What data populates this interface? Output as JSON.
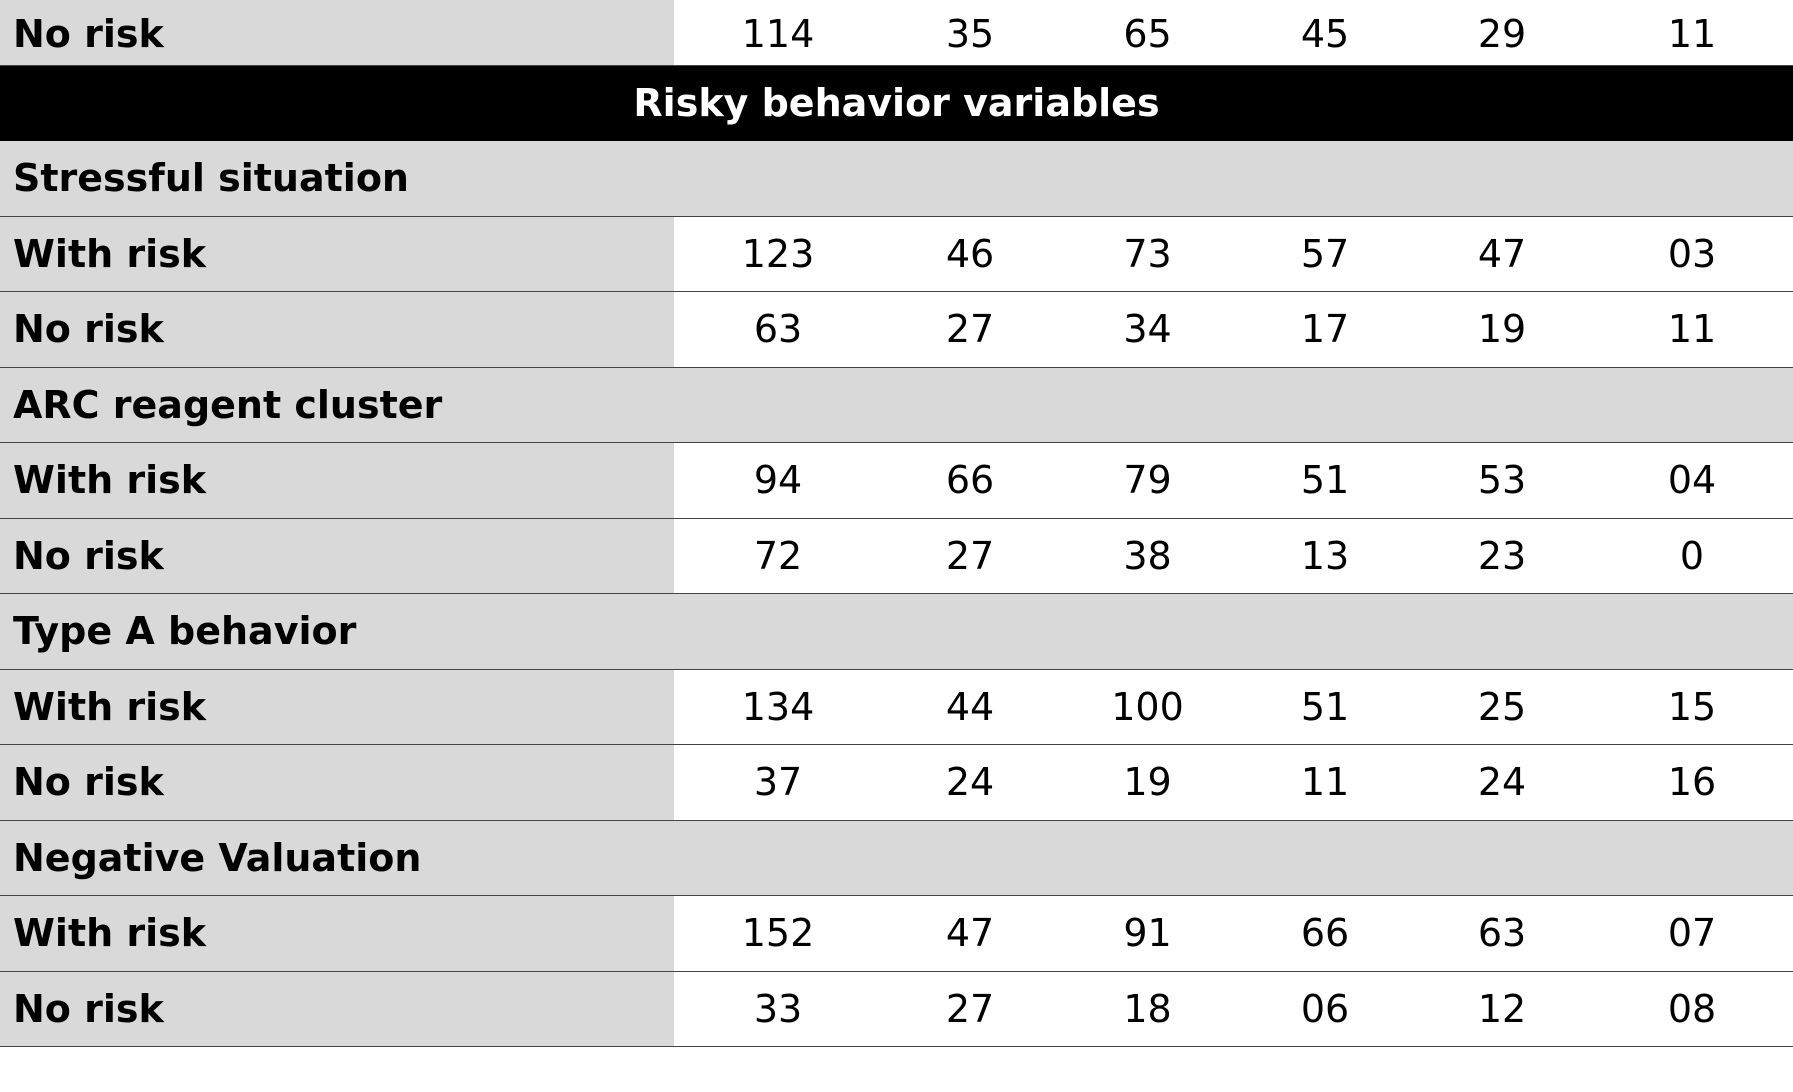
{
  "section_header": "Risky behavior variables",
  "top_row": {
    "label": "No risk",
    "values": [
      "114",
      "35",
      "65",
      "45",
      "29",
      "11"
    ]
  },
  "groups": [
    {
      "title": "Stressful situation",
      "rows": [
        {
          "label": "With risk",
          "values": [
            "123",
            "46",
            "73",
            "57",
            "47",
            "03"
          ]
        },
        {
          "label": "No risk",
          "values": [
            "63",
            "27",
            "34",
            "17",
            "19",
            "11"
          ]
        }
      ]
    },
    {
      "title": "ARC reagent cluster",
      "rows": [
        {
          "label": "With risk",
          "values": [
            "94",
            "66",
            "79",
            "51",
            "53",
            "04"
          ]
        },
        {
          "label": "No risk",
          "values": [
            "72",
            "27",
            "38",
            "13",
            "23",
            "0"
          ]
        }
      ]
    },
    {
      "title": "Type A behavior",
      "rows": [
        {
          "label": "With risk",
          "values": [
            "134",
            "44",
            "100",
            "51",
            "25",
            "15"
          ]
        },
        {
          "label": "No risk",
          "values": [
            "37",
            "24",
            "19",
            "11",
            "24",
            "16"
          ]
        }
      ]
    },
    {
      "title": "Negative Valuation",
      "rows": [
        {
          "label": "With risk",
          "values": [
            "152",
            "47",
            "91",
            "66",
            "63",
            "07"
          ]
        },
        {
          "label": "No risk",
          "values": [
            "33",
            "27",
            "18",
            "06",
            "12",
            "08"
          ]
        }
      ]
    }
  ],
  "colors": {
    "label_background": "#d9d9d9",
    "section_background": "#000000",
    "section_text": "#ffffff",
    "row_divider": "#444444"
  }
}
